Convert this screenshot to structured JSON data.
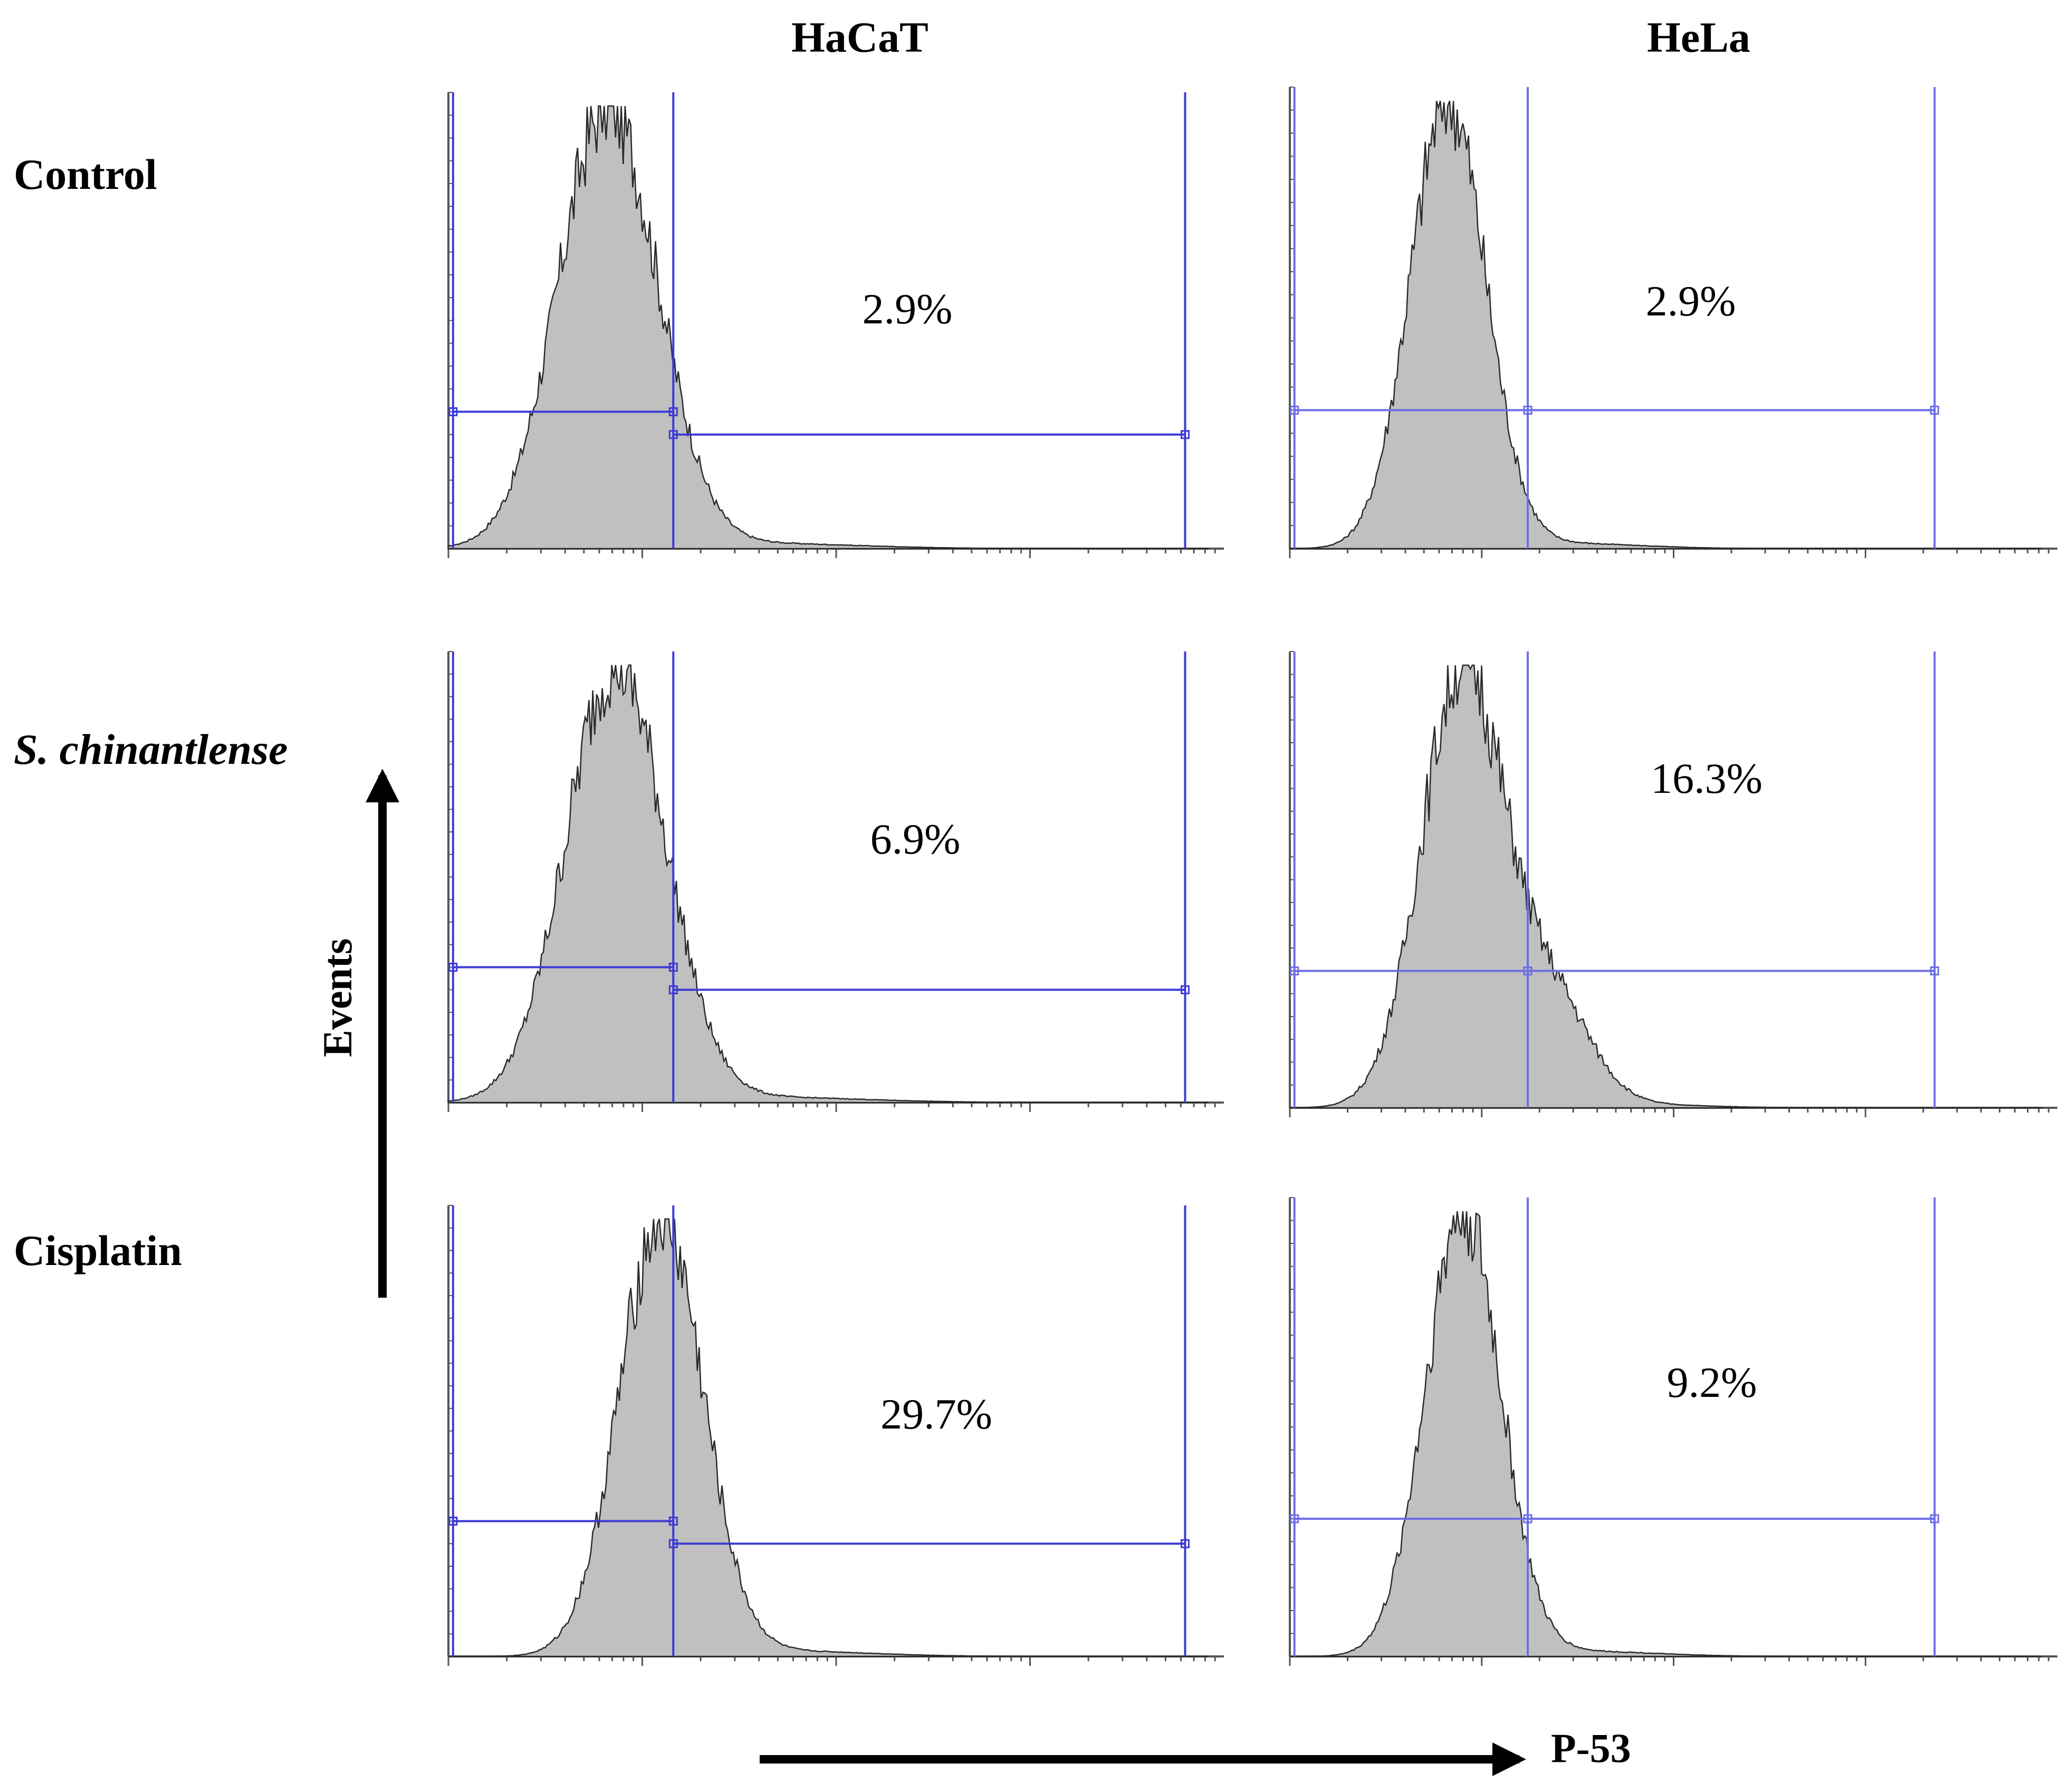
{
  "figure": {
    "columns": [
      "HaCaT",
      "HeLa"
    ],
    "rows": [
      "Control",
      "S. chinantlense",
      "Cisplatin"
    ],
    "y_axis_label": "Events",
    "x_axis_label": "P-53"
  },
  "colors": {
    "fill": "#c0c0c0",
    "outline": "#2a2a2a",
    "gate": "#3b3bd6",
    "gate_hela": "#6e6ee6",
    "axis": "#555555"
  },
  "chart_data": [
    {
      "type": "histogram",
      "cell": "HaCaT",
      "treatment": "Control",
      "percent_label": "2.9%",
      "value_percent": 2.9,
      "peak_position": 0.21,
      "spread": 0.065,
      "shoulder": 0.0,
      "gate_start": 0.29,
      "gate_end": 0.95
    },
    {
      "type": "histogram",
      "cell": "HeLa",
      "treatment": "Control",
      "percent_label": "2.9%",
      "value_percent": 2.9,
      "peak_position": 0.21,
      "spread": 0.05,
      "shoulder": 0.0,
      "gate_start": 0.31,
      "gate_end": 0.84
    },
    {
      "type": "histogram",
      "cell": "HaCaT",
      "treatment": "S. chinantlense",
      "percent_label": "6.9%",
      "value_percent": 6.9,
      "peak_position": 0.22,
      "spread": 0.065,
      "shoulder": 0.0,
      "gate_start": 0.29,
      "gate_end": 0.95
    },
    {
      "type": "histogram",
      "cell": "HeLa",
      "treatment": "S. chinantlense",
      "percent_label": "16.3%",
      "value_percent": 16.3,
      "peak_position": 0.23,
      "spread": 0.055,
      "shoulder": 0.22,
      "gate_start": 0.31,
      "gate_end": 0.84
    },
    {
      "type": "histogram",
      "cell": "HaCaT",
      "treatment": "Cisplatin",
      "percent_label": "29.7%",
      "value_percent": 29.7,
      "peak_position": 0.28,
      "spread": 0.055,
      "shoulder": 0.0,
      "gate_start": 0.29,
      "gate_end": 0.95
    },
    {
      "type": "histogram",
      "cell": "HeLa",
      "treatment": "Cisplatin",
      "percent_label": "9.2%",
      "value_percent": 9.2,
      "peak_position": 0.23,
      "spread": 0.05,
      "shoulder": 0.0,
      "gate_start": 0.31,
      "gate_end": 0.84
    }
  ]
}
